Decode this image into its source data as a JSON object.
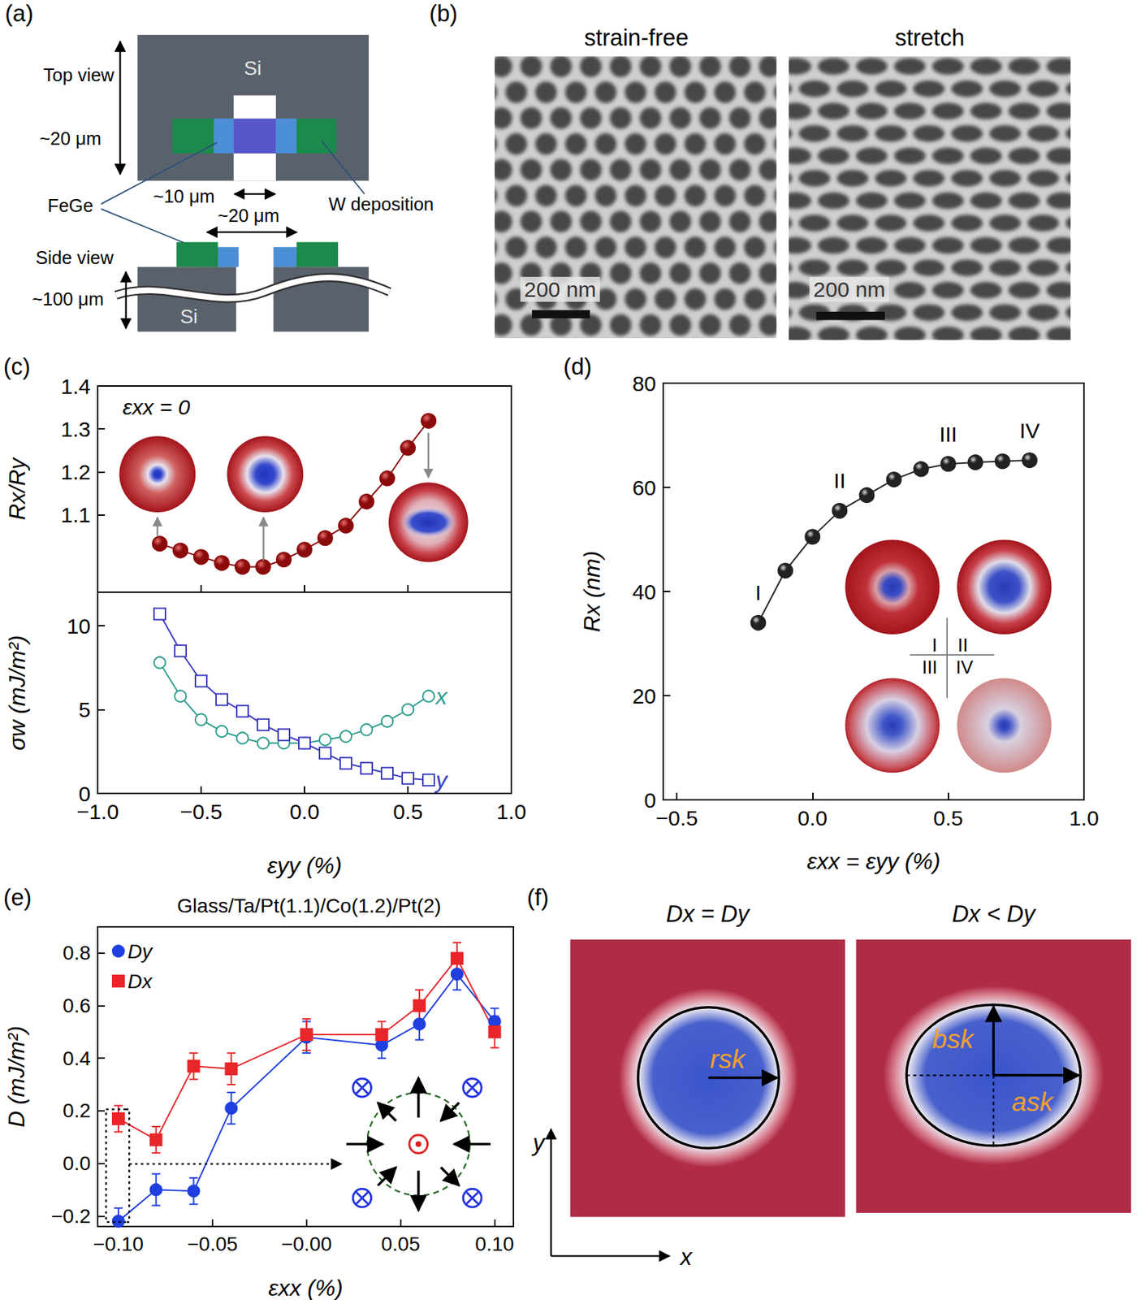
{
  "diagram_a": {
    "panel": "(a)",
    "top_view": {
      "label": "Top view",
      "substrate": "Si",
      "height": "~20 μm",
      "gap": "~10 μm"
    },
    "material": "FeGe",
    "contact": "W deposition",
    "side_view": {
      "label": "Side view",
      "gap": "~20 μm",
      "thickness": "~100 μm",
      "substrate": "Si"
    }
  },
  "images_b": {
    "panel": "(b)",
    "images": [
      {
        "title": "strain-free",
        "scale_bar": "200 nm"
      },
      {
        "title": "stretch",
        "scale_bar": "200 nm"
      }
    ]
  },
  "chart_data": [
    {
      "panel": "(c)",
      "type": "line",
      "annotations": [
        "εxx = 0"
      ],
      "x": [
        -0.7,
        -0.6,
        -0.5,
        -0.4,
        -0.3,
        -0.2,
        -0.1,
        0,
        0.1,
        0.2,
        0.3,
        0.4,
        0.5,
        0.6
      ],
      "values": [
        1.033,
        1.017,
        1.002,
        0.988,
        0.979,
        0.979,
        0.996,
        1.019,
        1.046,
        1.075,
        1.131,
        1.185,
        1.256,
        1.319
      ],
      "color": "#8b0a0a",
      "marker": "circle",
      "xlim": [
        -1,
        1
      ],
      "xticks": [
        -1,
        -0.5,
        0,
        0.5,
        1
      ],
      "ylim": [
        0.92,
        1.4
      ],
      "yticks": [
        1.1,
        1.2,
        1.3,
        1.4
      ],
      "y_label": "Rx/Ry",
      "tick_labels": "y"
    },
    {
      "type": "line",
      "x": [
        -0.7,
        -0.6,
        -0.5,
        -0.4,
        -0.3,
        -0.2,
        -0.1,
        0,
        0.1,
        0.2,
        0.3,
        0.4,
        0.5,
        0.6
      ],
      "series": [
        {
          "name": "x",
          "color": "#2e9e8e",
          "marker": "open_circle",
          "values": [
            7.8,
            5.8,
            4.4,
            3.7,
            3.3,
            3.0,
            3.0,
            3.0,
            3.2,
            3.4,
            3.8,
            4.3,
            5.0,
            5.8
          ]
        },
        {
          "name": "y",
          "color": "#3b3bbf",
          "marker": "open_square",
          "values": [
            10.7,
            8.5,
            6.7,
            5.6,
            4.9,
            4.1,
            3.5,
            3.0,
            2.4,
            1.8,
            1.5,
            1.2,
            0.9,
            0.8
          ]
        }
      ],
      "xlim": [
        -1,
        1
      ],
      "xticks": [
        {
          "value": -1,
          "label": "−1.0"
        },
        {
          "value": -0.5,
          "label": "−0.5"
        },
        {
          "value": 0,
          "label": "0.0"
        },
        0.5,
        {
          "value": 1,
          "label": "1.0"
        }
      ],
      "ylim": [
        0,
        12
      ],
      "yticks": [
        0,
        5,
        10
      ],
      "x_label": "εyy (%)",
      "y_label": "σw (mJ/m²)"
    },
    {
      "panel": "(d)",
      "type": "line",
      "x": [
        -0.2,
        -0.1,
        0,
        0.1,
        0.2,
        0.3,
        0.4,
        0.5,
        0.6,
        0.7,
        0.8
      ],
      "values": [
        34,
        44,
        50.5,
        55.5,
        58.5,
        61.5,
        63.5,
        64.5,
        64.8,
        65,
        65.2
      ],
      "color": "#222222",
      "marker": "circle",
      "annotations": [
        {
          "text": "I",
          "x": -0.2
        },
        {
          "text": "II",
          "x": 0.1
        },
        {
          "text": "III",
          "x": 0.5
        },
        {
          "text": "IV",
          "x": 0.8
        }
      ],
      "xlim": [
        -0.55,
        1
      ],
      "xticks": [
        {
          "value": -0.5,
          "label": "−0.5"
        },
        {
          "value": 0,
          "label": "0.0"
        },
        0.5,
        {
          "value": 1,
          "label": "1.0"
        }
      ],
      "ylim": [
        0,
        80
      ],
      "yticks": [
        0,
        20,
        40,
        60,
        80
      ],
      "x_label": "εxx = εyy (%)",
      "y_label": "Rx (nm)"
    },
    {
      "panel": "(e)",
      "type": "line",
      "title": "Glass/Ta/Pt(1.1)/Co(1.2)/Pt(2)",
      "x": [
        -0.1,
        -0.08,
        -0.06,
        -0.04,
        0,
        0.04,
        0.06,
        0.08,
        0.1
      ],
      "series": [
        {
          "name": "Dy",
          "color": "#1f3fe0",
          "marker": "circle",
          "values": [
            -0.22,
            -0.1,
            -0.105,
            0.21,
            0.48,
            0.45,
            0.53,
            0.72,
            0.54
          ],
          "errors": [
            0.05,
            0.06,
            0.05,
            0.06,
            0.06,
            0.05,
            0.06,
            0.06,
            0.05
          ]
        },
        {
          "name": "Dx",
          "color": "#e8262a",
          "marker": "square",
          "values": [
            0.17,
            0.09,
            0.37,
            0.36,
            0.49,
            0.49,
            0.6,
            0.78,
            0.5
          ],
          "errors": [
            0.05,
            0.05,
            0.05,
            0.06,
            0.06,
            0.05,
            0.06,
            0.06,
            0.06
          ]
        }
      ],
      "legend": "upper left",
      "xlim": [
        -0.111,
        0.11
      ],
      "xticks": [
        {
          "value": -0.1,
          "label": "−0.10"
        },
        {
          "value": -0.05,
          "label": "−0.05"
        },
        {
          "value": 0,
          "label": "−0.00"
        },
        0.05,
        {
          "value": 0.1,
          "label": "0.10"
        }
      ],
      "ylim": [
        -0.24,
        0.9
      ],
      "yticks": [
        {
          "value": -0.2,
          "label": "−0.2"
        },
        {
          "value": 0,
          "label": "0.0"
        },
        0.2,
        0.4,
        0.6,
        0.8
      ],
      "x_label": "εxx (%)",
      "y_label": "D (mJ/m²)"
    }
  ],
  "diagram_f": {
    "panel": "(f)",
    "panels": [
      {
        "title": "Dx = Dy",
        "labels": [
          "rsk"
        ]
      },
      {
        "title": "Dx < Dy",
        "labels": [
          "bsk",
          "ask"
        ]
      }
    ],
    "axes": [
      "x",
      "y"
    ]
  }
}
